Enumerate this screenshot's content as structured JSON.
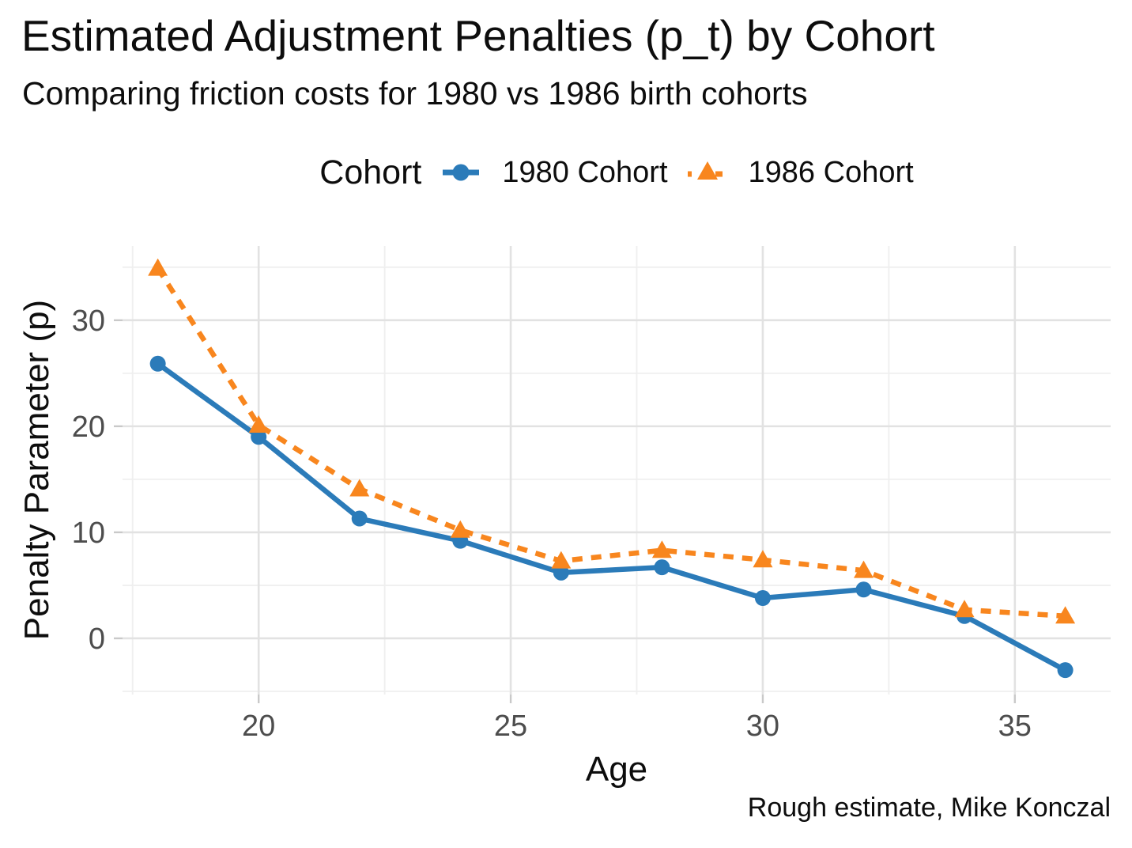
{
  "chart_data": {
    "type": "line",
    "title": "Estimated Adjustment Penalties (p_t) by Cohort",
    "subtitle": "Comparing friction costs for 1980 vs 1986 birth cohorts",
    "caption": "Rough estimate, Mike Konczal",
    "legend_title": "Cohort",
    "legend_position": "top-center",
    "xlabel": "Age",
    "ylabel": "Penalty Parameter (p)",
    "x": [
      18,
      20,
      22,
      24,
      26,
      28,
      30,
      32,
      34,
      36
    ],
    "series": [
      {
        "name": "1980 Cohort",
        "marker": "circle",
        "linestyle": "solid",
        "color": "#2b7bb9",
        "values": [
          25.9,
          19.0,
          11.3,
          9.2,
          6.2,
          6.7,
          3.8,
          4.6,
          2.1,
          -3.0
        ]
      },
      {
        "name": "1986 Cohort",
        "marker": "triangle",
        "linestyle": "dashed",
        "color": "#f8861e",
        "values": [
          34.9,
          20.1,
          14.1,
          10.2,
          7.3,
          8.3,
          7.4,
          6.4,
          2.7,
          2.1
        ]
      }
    ],
    "xticks": [
      20,
      25,
      30,
      35
    ],
    "yticks": [
      0,
      10,
      20,
      30
    ],
    "x_minor_gridlines": [
      17.5,
      22.5,
      27.5,
      32.5
    ],
    "y_minor_gridlines": [
      -5,
      5,
      15,
      25,
      35
    ],
    "xlim": [
      17.3,
      36.9
    ],
    "ylim": [
      -5.3,
      37.0
    ],
    "grid": "major_and_minor",
    "theme": {
      "background": "#ffffff",
      "grid_major_color": "#e2e2e2",
      "grid_minor_color": "#efefef",
      "tick_color": "#c9c9c9",
      "tick_label_color": "#4d4d4d",
      "text_color": "#0d0d0d"
    }
  }
}
